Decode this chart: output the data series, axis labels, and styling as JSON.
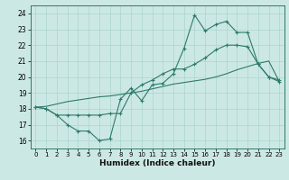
{
  "title": "",
  "xlabel": "Humidex (Indice chaleur)",
  "bg_color": "#cce8e4",
  "grid_color": "#aad4d0",
  "line_color": "#2d7a6b",
  "xlim": [
    -0.5,
    23.5
  ],
  "ylim": [
    15.5,
    24.5
  ],
  "xticks": [
    0,
    1,
    2,
    3,
    4,
    5,
    6,
    7,
    8,
    9,
    10,
    11,
    12,
    13,
    14,
    15,
    16,
    17,
    18,
    19,
    20,
    21,
    22,
    23
  ],
  "yticks": [
    16,
    17,
    18,
    19,
    20,
    21,
    22,
    23,
    24
  ],
  "line1_x": [
    0,
    1,
    2,
    3,
    4,
    5,
    6,
    7,
    8,
    9,
    10,
    11,
    12,
    13,
    14,
    15,
    16,
    17,
    18,
    19,
    20,
    21,
    22,
    23
  ],
  "line1_y": [
    18.1,
    18.0,
    17.6,
    17.0,
    16.6,
    16.6,
    16.0,
    16.1,
    18.6,
    19.3,
    18.5,
    19.5,
    19.6,
    20.2,
    21.8,
    23.9,
    22.9,
    23.3,
    23.5,
    22.8,
    22.8,
    20.8,
    20.0,
    19.7
  ],
  "line2_x": [
    0,
    1,
    2,
    3,
    4,
    5,
    6,
    7,
    8,
    9,
    10,
    11,
    12,
    13,
    14,
    15,
    16,
    17,
    18,
    19,
    20,
    21,
    22,
    23
  ],
  "line2_y": [
    18.1,
    18.0,
    17.6,
    17.6,
    17.6,
    17.6,
    17.6,
    17.7,
    17.7,
    19.0,
    19.5,
    19.8,
    20.2,
    20.5,
    20.5,
    20.8,
    21.2,
    21.7,
    22.0,
    22.0,
    21.9,
    20.8,
    20.0,
    19.8
  ],
  "line3_x": [
    0,
    1,
    2,
    3,
    4,
    5,
    6,
    7,
    8,
    9,
    10,
    11,
    12,
    13,
    14,
    15,
    16,
    17,
    18,
    19,
    20,
    21,
    22,
    23
  ],
  "line3_y": [
    18.1,
    18.15,
    18.3,
    18.45,
    18.55,
    18.65,
    18.75,
    18.8,
    18.9,
    19.0,
    19.1,
    19.25,
    19.4,
    19.55,
    19.65,
    19.75,
    19.85,
    20.0,
    20.2,
    20.45,
    20.65,
    20.85,
    21.0,
    19.7
  ]
}
